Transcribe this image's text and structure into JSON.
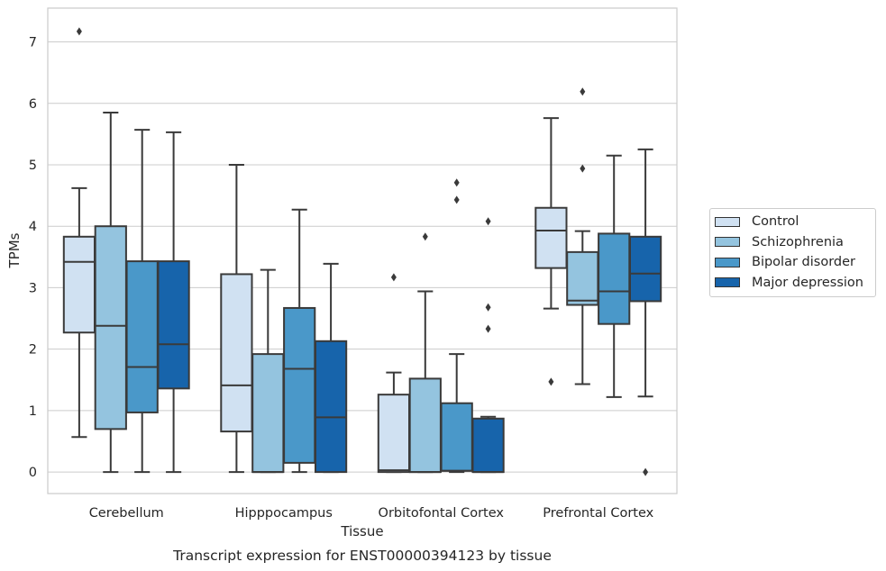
{
  "chart_data": {
    "type": "box",
    "title": "Transcript expression for ENST00000394123 by tissue",
    "xlabel": "Tissue",
    "ylabel": "TPMs",
    "ylim": [
      -0.35,
      7.55
    ],
    "yticks": [
      "0",
      "1",
      "2",
      "3",
      "4",
      "5",
      "6",
      "7"
    ],
    "categories": [
      "Cerebellum",
      "Hipppocampus",
      "Orbitofontal Cortex",
      "Prefrontal Cortex"
    ],
    "grid": "y",
    "legend_position": "right",
    "series": [
      {
        "name": "Control",
        "color": "#d0e1f2",
        "boxes": [
          {
            "whislo": 0.57,
            "q1": 2.27,
            "med": 3.42,
            "q3": 3.83,
            "whishi": 4.62,
            "fliers": [
              7.17
            ]
          },
          {
            "whislo": 0.0,
            "q1": 0.66,
            "med": 1.41,
            "q3": 3.22,
            "whishi": 5.0,
            "fliers": []
          },
          {
            "whislo": 0.0,
            "q1": 0.0,
            "med": 0.03,
            "q3": 1.26,
            "whishi": 1.62,
            "fliers": [
              3.17
            ]
          },
          {
            "whislo": 2.66,
            "q1": 3.32,
            "med": 3.93,
            "q3": 4.3,
            "whishi": 5.76,
            "fliers": [
              1.47
            ]
          }
        ]
      },
      {
        "name": "Schizophrenia",
        "color": "#94c4df",
        "boxes": [
          {
            "whislo": 0.0,
            "q1": 0.7,
            "med": 2.38,
            "q3": 4.0,
            "whishi": 5.85,
            "fliers": []
          },
          {
            "whislo": 0.0,
            "q1": 0.0,
            "med": 0.0,
            "q3": 1.92,
            "whishi": 3.29,
            "fliers": []
          },
          {
            "whislo": 0.0,
            "q1": 0.0,
            "med": 0.0,
            "q3": 1.52,
            "whishi": 2.94,
            "fliers": [
              3.83
            ]
          },
          {
            "whislo": 1.43,
            "q1": 2.72,
            "med": 2.79,
            "q3": 3.58,
            "whishi": 3.92,
            "fliers": [
              4.94,
              6.19
            ]
          }
        ]
      },
      {
        "name": "Bipolar disorder",
        "color": "#4a98c9",
        "boxes": [
          {
            "whislo": 0.0,
            "q1": 0.97,
            "med": 1.71,
            "q3": 3.43,
            "whishi": 5.57,
            "fliers": []
          },
          {
            "whislo": 0.0,
            "q1": 0.15,
            "med": 1.68,
            "q3": 2.67,
            "whishi": 4.27,
            "fliers": []
          },
          {
            "whislo": 0.0,
            "q1": 0.02,
            "med": 0.02,
            "q3": 1.12,
            "whishi": 1.92,
            "fliers": [
              4.43,
              4.71
            ]
          },
          {
            "whislo": 1.22,
            "q1": 2.41,
            "med": 2.94,
            "q3": 3.88,
            "whishi": 5.15,
            "fliers": []
          }
        ]
      },
      {
        "name": "Major depression",
        "color": "#1764ab",
        "boxes": [
          {
            "whislo": 0.0,
            "q1": 1.36,
            "med": 2.08,
            "q3": 3.43,
            "whishi": 5.53,
            "fliers": []
          },
          {
            "whislo": 0.0,
            "q1": 0.0,
            "med": 0.89,
            "q3": 2.13,
            "whishi": 3.39,
            "fliers": []
          },
          {
            "whislo": 0.0,
            "q1": 0.0,
            "med": 0.0,
            "q3": 0.87,
            "whishi": 0.9,
            "fliers": [
              2.33,
              2.68,
              4.08
            ]
          },
          {
            "whislo": 1.23,
            "q1": 2.78,
            "med": 3.23,
            "q3": 3.83,
            "whishi": 5.25,
            "fliers": [
              0.0
            ]
          }
        ]
      }
    ]
  }
}
